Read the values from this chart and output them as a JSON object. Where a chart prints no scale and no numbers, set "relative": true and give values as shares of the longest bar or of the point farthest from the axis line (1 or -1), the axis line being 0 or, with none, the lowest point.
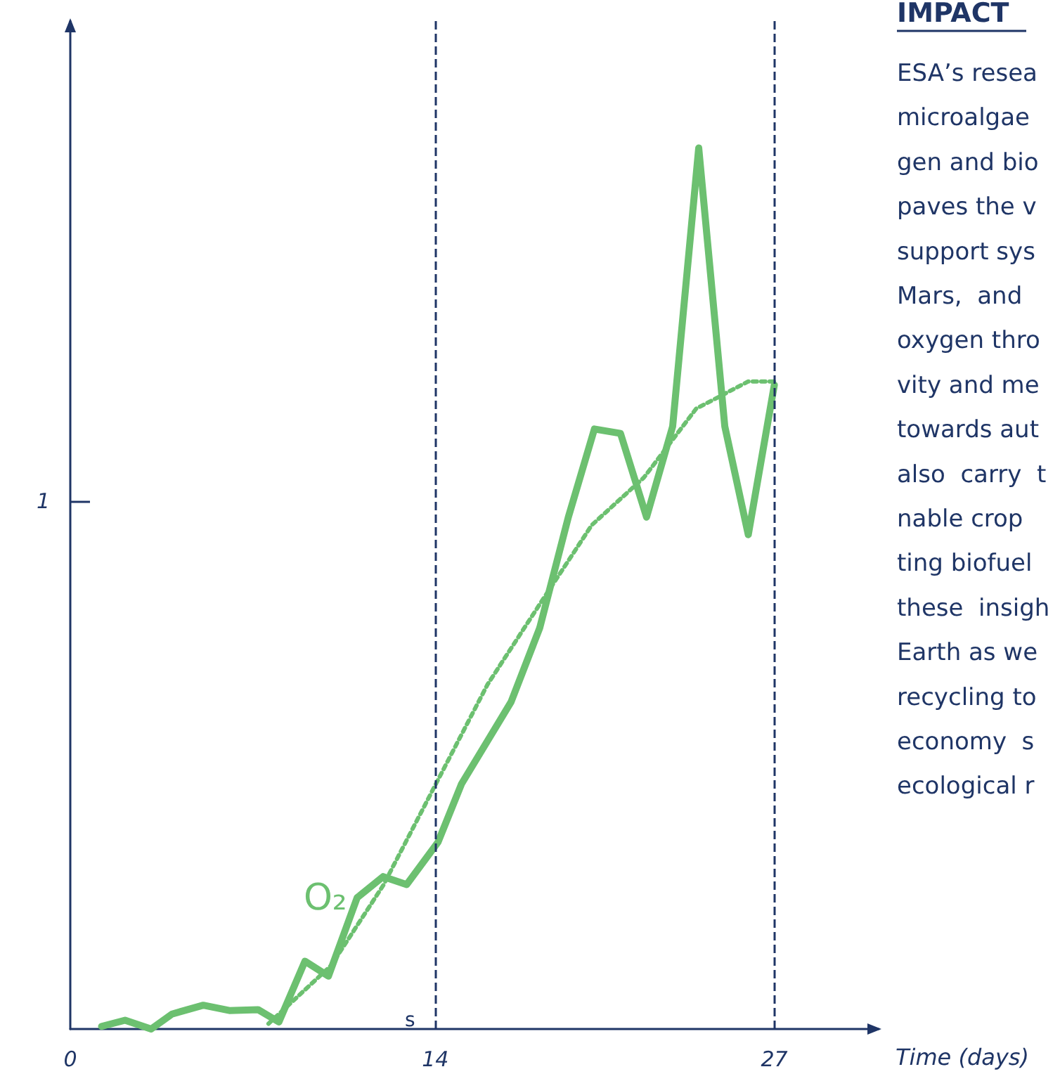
{
  "chart_data": {
    "type": "line",
    "title": "IMPACT",
    "xlabel": "Time (days)",
    "relative": true,
    "x": [
      1.2,
      2.1,
      3.1,
      3.9,
      5.1,
      6.1,
      7.2,
      8.0,
      9.0,
      9.9,
      11.0,
      12.0,
      12.9,
      14.1,
      15.0,
      16.9,
      18.0,
      19.1,
      20.1,
      21.1,
      22.1,
      23.1,
      24.1,
      25.1,
      26.0,
      27.0
    ],
    "series": [
      {
        "name": "O₂",
        "color": "#6cc070",
        "values": [
          0.003,
          0.01,
          0.0,
          0.017,
          0.027,
          0.021,
          0.022,
          0.008,
          0.077,
          0.06,
          0.149,
          0.173,
          0.164,
          0.212,
          0.278,
          0.371,
          0.455,
          0.581,
          0.681,
          0.676,
          0.581,
          0.684,
          1,
          0.684,
          0.561,
          0.731
        ]
      },
      {
        "type": "line",
        "color": "#6cc070",
        "line_style": "dotted",
        "x": [
          7.6,
          10,
          12,
          14,
          16,
          18,
          20,
          22,
          24,
          26,
          27
        ],
        "values": [
          0.006,
          0.072,
          0.163,
          0.277,
          0.391,
          0.482,
          0.572,
          0.626,
          0.704,
          0.735,
          0.735
        ]
      }
    ],
    "xlim": [
      0,
      31
    ],
    "xticks": [
      0,
      14,
      27
    ],
    "ref_lines": [
      {
        "axis": "x",
        "value": 14,
        "label": "s",
        "color": "#1f3566",
        "line_style": "dashed"
      },
      {
        "axis": "x",
        "value": 27,
        "color": "#1f3566",
        "line_style": "dashed"
      }
    ],
    "legend": "bottom left",
    "grid": false,
    "marker": "none",
    "line_style": "solid",
    "annotations": [
      "1",
      "ESA’s resea",
      "microalgae",
      "gen and bio",
      "paves the v",
      "support sys",
      "Mars,  and",
      "oxygen thro",
      "vity and me",
      "towards aut",
      "also  carry  t",
      "nable crop",
      "ting biofuel",
      "these  insigh",
      "Earth as we",
      "recycling to",
      "economy  s",
      "ecological r"
    ]
  }
}
